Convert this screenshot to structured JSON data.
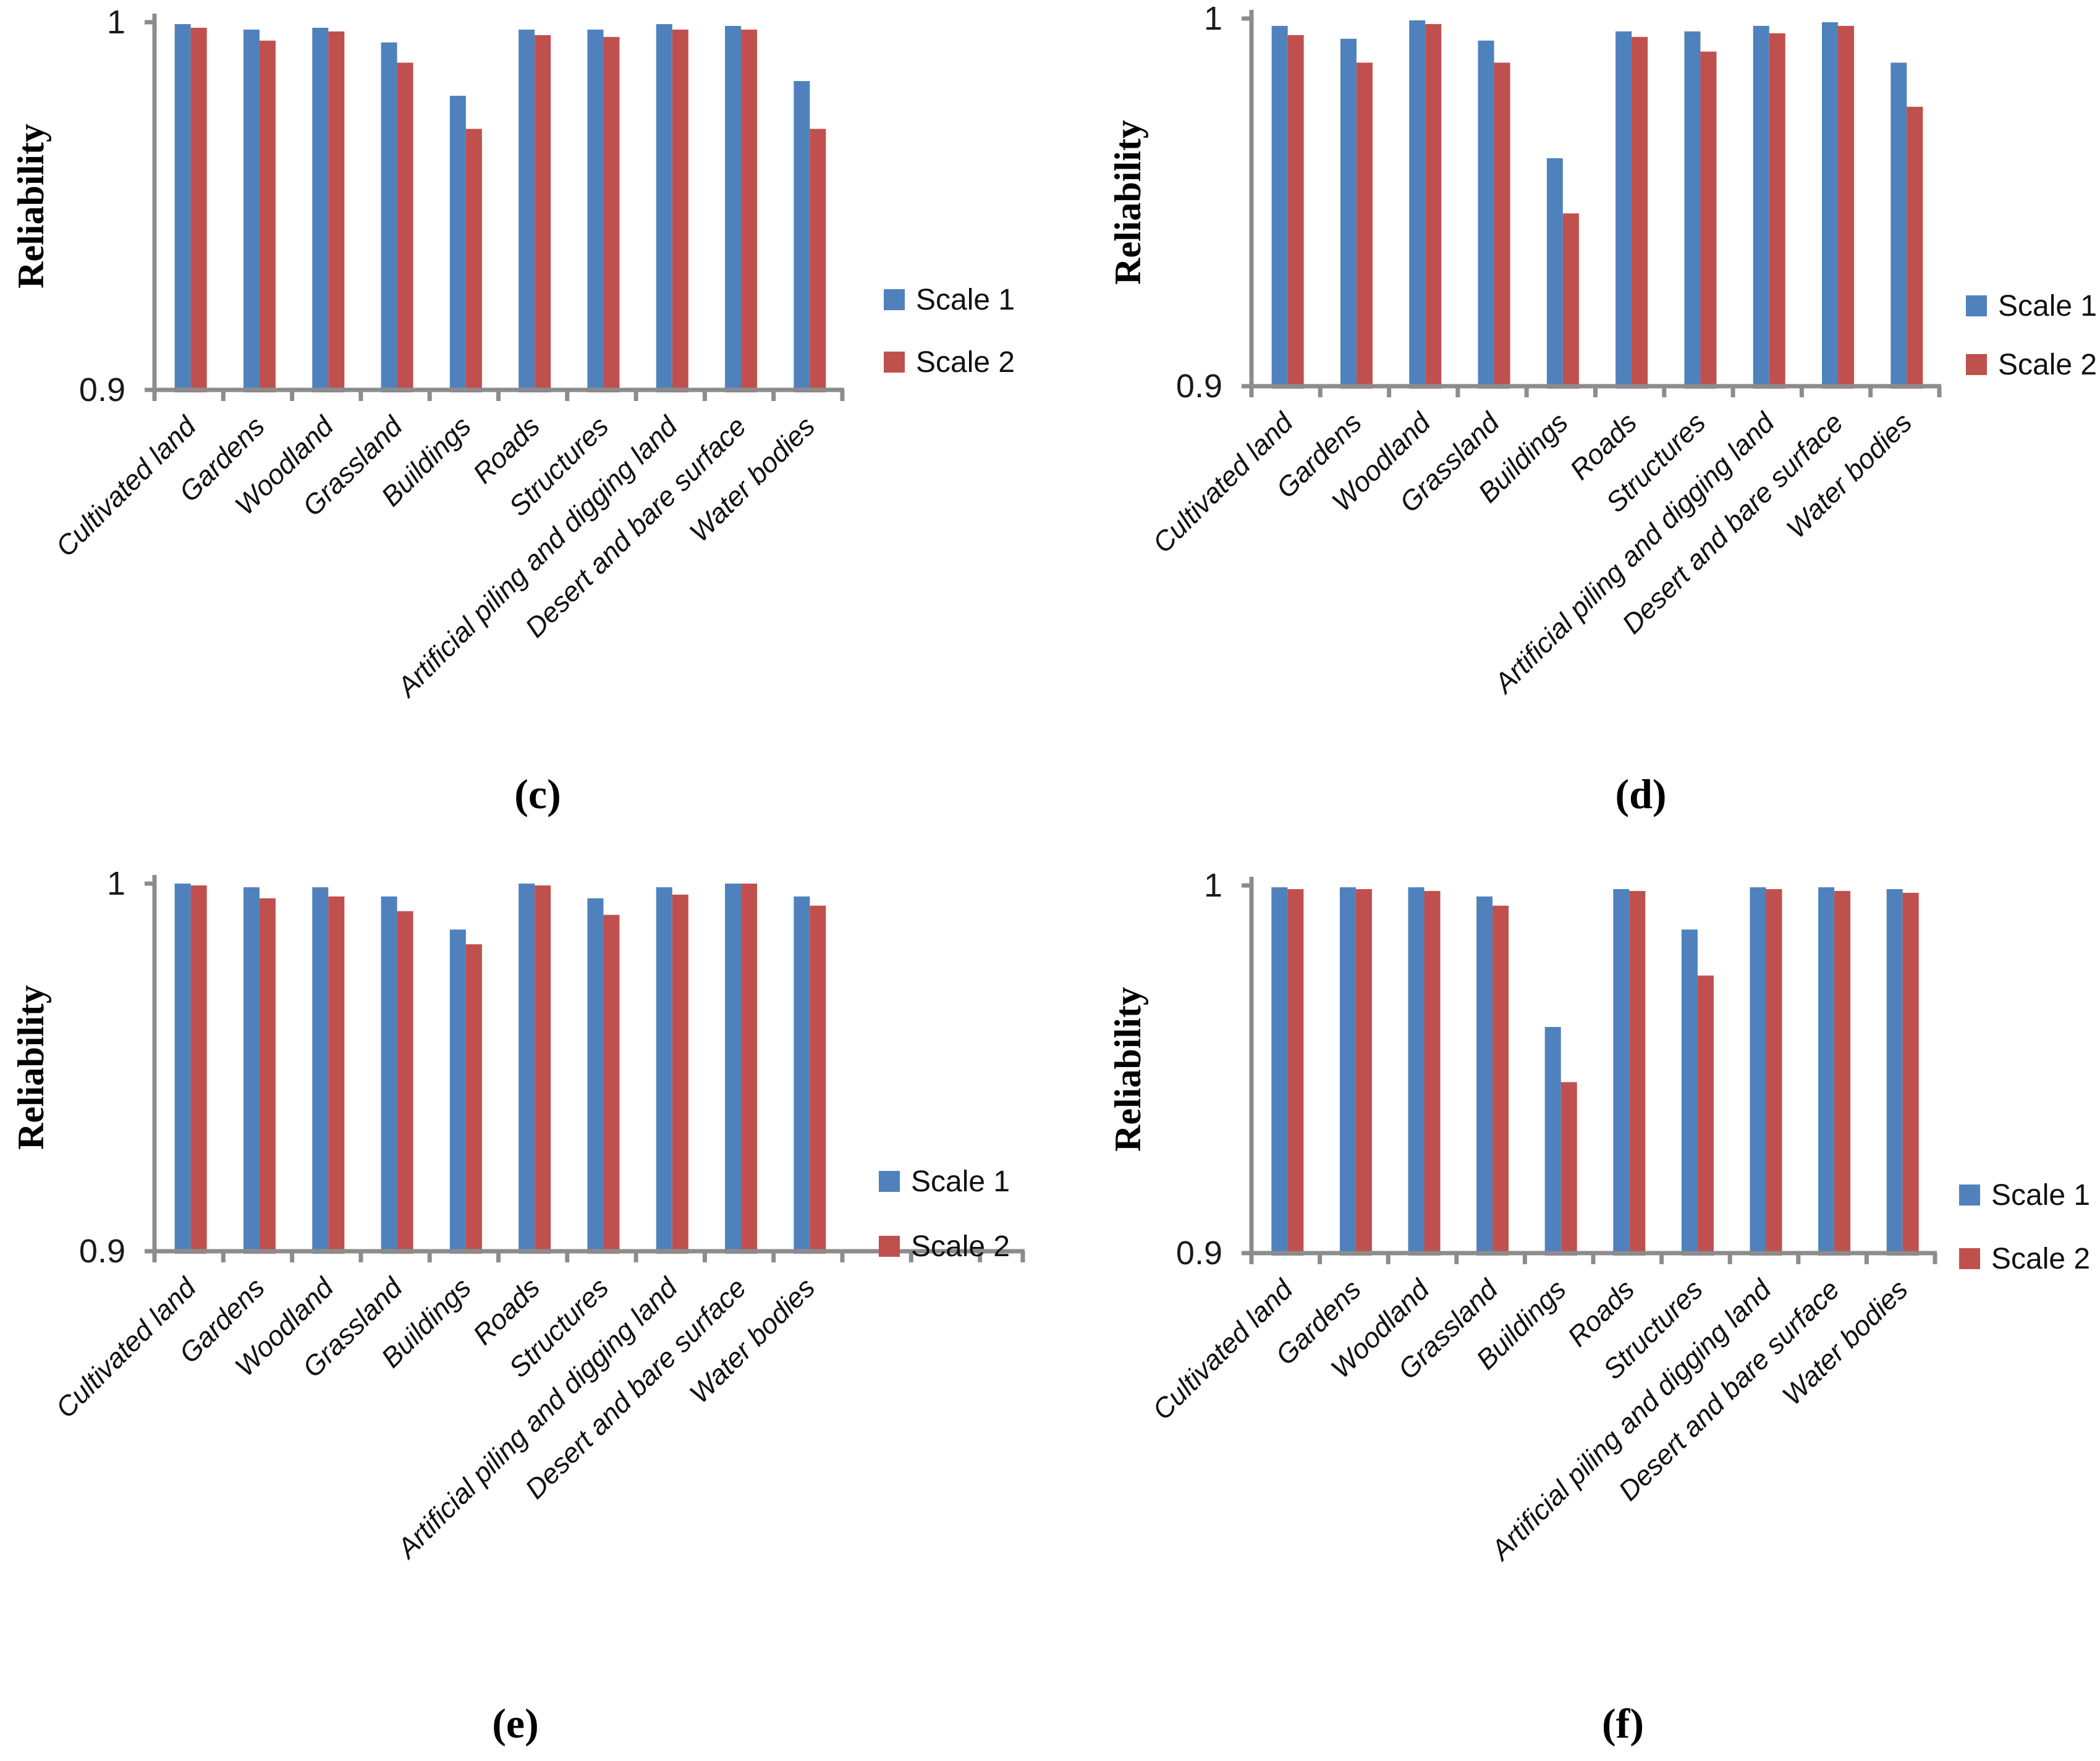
{
  "figure": {
    "ylabel": "Reliability",
    "ytick_labels": [
      "1",
      "0.9"
    ],
    "legend": {
      "items": [
        {
          "label": "Scale 1"
        },
        {
          "label": "Scale 2"
        }
      ]
    },
    "colors": {
      "scale1": "#4F81BD",
      "scale2": "#C0504D",
      "axis": "#8C8C8C",
      "text": "#111111"
    }
  },
  "chart_data": [
    {
      "type": "bar",
      "panel_caption": "(c)",
      "ylabel": "Reliability",
      "ylim": [
        0.9,
        1.0
      ],
      "ytick_labels": [
        "1",
        "0.9"
      ],
      "grid": false,
      "legend_position": "right",
      "categories": [
        "Cultivated land",
        "Gardens",
        "Woodland",
        "Grassland",
        "Buildings",
        "Roads",
        "Structures",
        "Artificial piling and digging land",
        "Desert and bare surface",
        "Water bodies"
      ],
      "series": [
        {
          "name": "Scale 1",
          "color": "#4F81BD",
          "values": [
            0.9995,
            0.998,
            0.9985,
            0.9945,
            0.98,
            0.998,
            0.998,
            0.9995,
            0.999,
            0.984
          ]
        },
        {
          "name": "Scale 2",
          "color": "#C0504D",
          "values": [
            0.9985,
            0.995,
            0.9975,
            0.989,
            0.971,
            0.9965,
            0.996,
            0.998,
            0.998,
            0.971
          ]
        }
      ]
    },
    {
      "type": "bar",
      "panel_caption": "(d)",
      "ylabel": "Reliability",
      "ylim": [
        0.9,
        1.0
      ],
      "ytick_labels": [
        "1",
        "0.9"
      ],
      "grid": false,
      "legend_position": "right",
      "categories": [
        "Cultivated land",
        "Gardens",
        "Woodland",
        "Grassland",
        "Buildings",
        "Roads",
        "Structures",
        "Artificial piling and digging land",
        "Desert and bare surface",
        "Water bodies"
      ],
      "series": [
        {
          "name": "Scale 1",
          "color": "#4F81BD",
          "values": [
            0.998,
            0.9945,
            0.9995,
            0.994,
            0.962,
            0.9965,
            0.9965,
            0.998,
            0.999,
            0.988
          ]
        },
        {
          "name": "Scale 2",
          "color": "#C0504D",
          "values": [
            0.9955,
            0.988,
            0.9985,
            0.988,
            0.947,
            0.995,
            0.991,
            0.996,
            0.998,
            0.976
          ]
        }
      ]
    },
    {
      "type": "bar",
      "panel_caption": "(e)",
      "ylabel": "Reliability",
      "ylim": [
        0.9,
        1.0
      ],
      "ytick_labels": [
        "1",
        "0.9"
      ],
      "grid": false,
      "legend_position": "right",
      "categories": [
        "Cultivated land",
        "Gardens",
        "Woodland",
        "Grassland",
        "Buildings",
        "Roads",
        "Structures",
        "Artificial piling and digging land",
        "Desert and bare surface",
        "Water bodies"
      ],
      "series": [
        {
          "name": "Scale 1",
          "color": "#4F81BD",
          "values": [
            1.0,
            0.999,
            0.999,
            0.9965,
            0.9875,
            1.0,
            0.996,
            0.999,
            1.0,
            0.9965
          ]
        },
        {
          "name": "Scale 2",
          "color": "#C0504D",
          "values": [
            0.9995,
            0.996,
            0.9965,
            0.9925,
            0.9835,
            0.9995,
            0.9915,
            0.997,
            1.0,
            0.994
          ]
        }
      ]
    },
    {
      "type": "bar",
      "panel_caption": "(f)",
      "ylabel": "Reliability",
      "ylim": [
        0.9,
        1.0
      ],
      "ytick_labels": [
        "1",
        "0.9"
      ],
      "grid": false,
      "legend_position": "right",
      "categories": [
        "Cultivated land",
        "Gardens",
        "Woodland",
        "Grassland",
        "Buildings",
        "Roads",
        "Structures",
        "Artificial piling and digging land",
        "Desert and bare surface",
        "Water bodies"
      ],
      "series": [
        {
          "name": "Scale 1",
          "color": "#4F81BD",
          "values": [
            0.9995,
            0.9995,
            0.9995,
            0.997,
            0.9615,
            0.999,
            0.988,
            0.9995,
            0.9995,
            0.999
          ]
        },
        {
          "name": "Scale 2",
          "color": "#C0504D",
          "values": [
            0.999,
            0.999,
            0.9985,
            0.9945,
            0.9465,
            0.9985,
            0.9755,
            0.999,
            0.9985,
            0.998
          ]
        }
      ]
    }
  ]
}
